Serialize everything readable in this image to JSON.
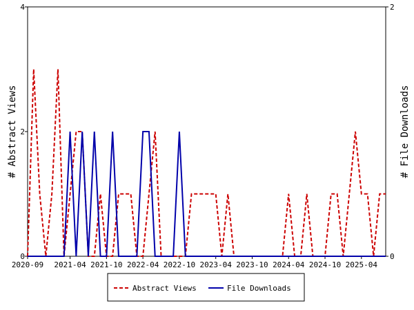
{
  "chart_data": {
    "type": "line",
    "x": [
      "2020-09",
      "2020-10",
      "2020-11",
      "2020-12",
      "2021-01",
      "2021-02",
      "2021-03",
      "2021-04",
      "2021-05",
      "2021-06",
      "2021-07",
      "2021-08",
      "2021-09",
      "2021-10",
      "2021-11",
      "2021-12",
      "2022-01",
      "2022-02",
      "2022-03",
      "2022-04",
      "2022-05",
      "2022-06",
      "2022-07",
      "2022-08",
      "2022-09",
      "2022-10",
      "2022-11",
      "2022-12",
      "2023-01",
      "2023-02",
      "2023-03",
      "2023-04",
      "2023-05",
      "2023-06",
      "2023-07",
      "2023-08",
      "2023-09",
      "2023-10",
      "2023-11",
      "2023-12",
      "2024-01",
      "2024-02",
      "2024-03",
      "2024-04",
      "2024-05",
      "2024-06",
      "2024-07",
      "2024-08",
      "2024-09",
      "2024-10",
      "2024-11",
      "2024-12",
      "2025-01",
      "2025-02",
      "2025-03",
      "2025-04",
      "2025-05",
      "2025-06",
      "2025-07",
      "2025-08"
    ],
    "x_ticks": [
      "2020-09",
      "2021-04",
      "2021-10",
      "2022-04",
      "2022-10",
      "2023-04",
      "2023-10",
      "2024-04",
      "2024-10",
      "2025-04"
    ],
    "series": [
      {
        "name": "Abstract Views",
        "axis": "left",
        "color": "#cc0000",
        "style": "dashed",
        "values": [
          0,
          3,
          1,
          0,
          1,
          3,
          0,
          1,
          2,
          2,
          0,
          0,
          1,
          0,
          0,
          1,
          1,
          1,
          0,
          0,
          1,
          2,
          0,
          0,
          0,
          0,
          0,
          1,
          1,
          1,
          1,
          1,
          0,
          1,
          0,
          0,
          0,
          0,
          0,
          0,
          0,
          0,
          0,
          1,
          0,
          0,
          1,
          0,
          0,
          0,
          1,
          1,
          0,
          1,
          2,
          1,
          1,
          0,
          1,
          1
        ]
      },
      {
        "name": "File Downloads",
        "axis": "right",
        "color": "#0000aa",
        "style": "solid",
        "values": [
          0,
          0,
          0,
          0,
          0,
          0,
          0,
          1,
          0,
          1,
          0,
          1,
          0,
          0,
          1,
          0,
          0,
          0,
          0,
          1,
          1,
          0,
          0,
          0,
          0,
          1,
          0,
          0,
          0,
          0,
          0,
          0,
          0,
          0,
          0,
          0,
          0,
          0,
          0,
          0,
          0,
          0,
          0,
          0,
          0,
          0,
          0,
          0,
          0,
          0,
          0,
          0,
          0,
          0,
          0,
          0,
          0,
          0,
          0,
          0
        ]
      }
    ],
    "ylabel": "# Abstract Views",
    "y2label": "# File Downloads",
    "ylim": [
      0,
      4
    ],
    "y2lim": [
      0,
      2
    ],
    "y_ticks": [
      0,
      2,
      4
    ],
    "y2_ticks": [
      0,
      2
    ],
    "grid": false,
    "legend_position": "bottom"
  }
}
